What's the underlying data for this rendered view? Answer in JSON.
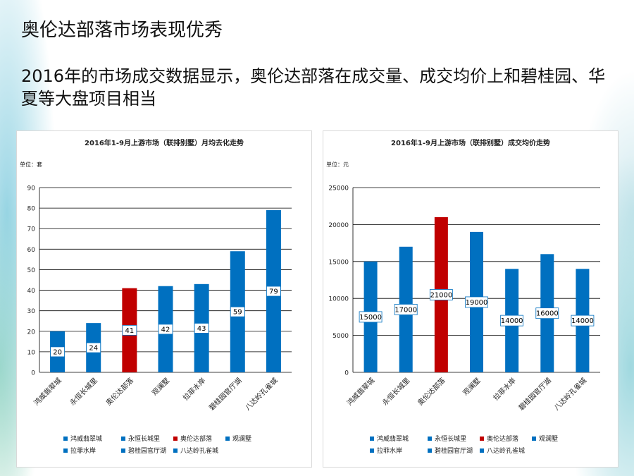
{
  "slide": {
    "title": "奥伦达部落市场表现优秀",
    "subtitle": "2016年的市场成交数据显示，奥伦达部落在成交量、成交均价上和碧桂园、华夏等大盘项目相当"
  },
  "colors": {
    "blue": "#0070C0",
    "red": "#C00000"
  },
  "chart_data": [
    {
      "type": "bar",
      "title": "2016年1-9月上游市场（联排别墅）月均去化走势",
      "unit_label": "单位：套",
      "categories": [
        "鸿威翡翠城",
        "永恒长城里",
        "奥伦达部落",
        "观澜墅",
        "拉菲水岸",
        "碧桂园官厅湖",
        "八达岭孔雀城"
      ],
      "values": [
        20,
        24,
        41,
        42,
        43,
        59,
        79
      ],
      "ylim": [
        0,
        90
      ],
      "yticks": [
        0,
        10,
        20,
        30,
        40,
        50,
        60,
        70,
        80,
        90
      ],
      "highlight_index": 2,
      "grid": true,
      "legend": {
        "position": "bottom",
        "rows": [
          [
            "鸿威翡翠城",
            "永恒长城里",
            "奥伦达部落",
            "观澜墅"
          ],
          [
            "拉菲水岸",
            "碧桂园官厅湖",
            "八达岭孔雀城"
          ]
        ]
      }
    },
    {
      "type": "bar",
      "title": "2016年1-9月上游市场（联排别墅）成交均价走势",
      "unit_label": "单位：元",
      "categories": [
        "鸿威翡翠城",
        "永恒长城里",
        "奥伦达部落",
        "观澜墅",
        "拉菲水岸",
        "碧桂园官厅湖",
        "八达岭孔雀城"
      ],
      "values": [
        15000,
        17000,
        21000,
        19000,
        14000,
        16000,
        14000
      ],
      "ylim": [
        0,
        25000
      ],
      "yticks": [
        0,
        5000,
        10000,
        15000,
        20000,
        25000
      ],
      "highlight_index": 2,
      "grid": true,
      "legend": {
        "position": "bottom",
        "rows": [
          [
            "鸿威翡翠城",
            "永恒长城里",
            "奥伦达部落",
            "观澜墅"
          ],
          [
            "拉菲水岸",
            "碧桂园官厅湖",
            "八达岭孔雀城"
          ]
        ]
      }
    }
  ]
}
